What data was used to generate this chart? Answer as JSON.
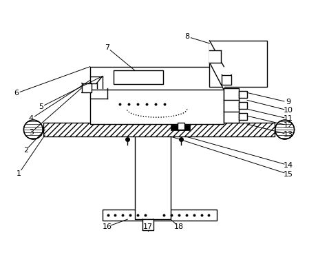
{
  "bg_color": "#ffffff",
  "lc": "#000000",
  "lw": 1.0,
  "label_fs": 8.0,
  "labels": [
    [
      "1",
      26,
      252
    ],
    [
      "2",
      36,
      218
    ],
    [
      "3",
      44,
      192
    ],
    [
      "4",
      44,
      172
    ],
    [
      "5",
      58,
      155
    ],
    [
      "6",
      22,
      135
    ],
    [
      "7",
      155,
      68
    ],
    [
      "8",
      272,
      52
    ],
    [
      "9",
      420,
      148
    ],
    [
      "10",
      420,
      160
    ],
    [
      "11",
      420,
      172
    ],
    [
      "12",
      420,
      182
    ],
    [
      "13",
      420,
      195
    ],
    [
      "14",
      420,
      240
    ],
    [
      "15",
      420,
      253
    ],
    [
      "16",
      155,
      330
    ],
    [
      "17",
      215,
      330
    ],
    [
      "18",
      260,
      330
    ]
  ]
}
